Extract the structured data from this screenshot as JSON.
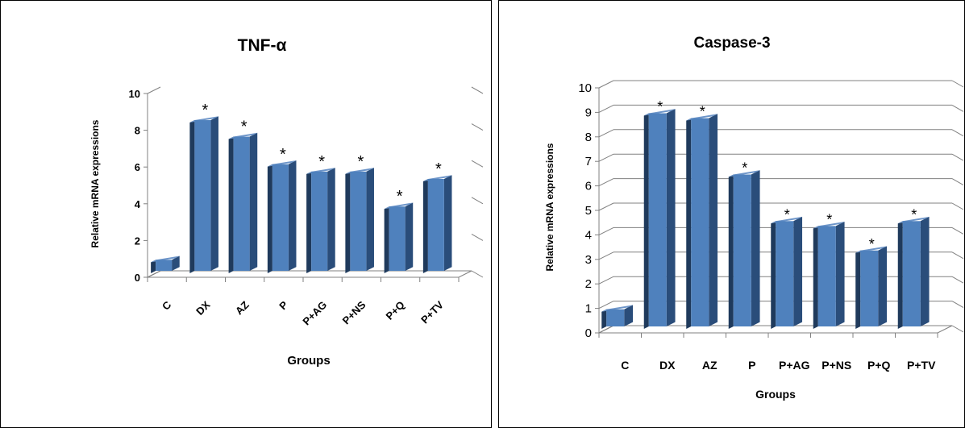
{
  "chart_data": [
    {
      "type": "bar",
      "title": "TNF-α",
      "xlabel": "Groups",
      "ylabel": "Relative mRNA expressions",
      "categories": [
        "C",
        "DX",
        "AZ",
        "P",
        "P+AG",
        "P+NS",
        "P+Q",
        "P+TV"
      ],
      "values": [
        0.6,
        8.2,
        7.3,
        5.8,
        5.4,
        5.4,
        3.5,
        5.0
      ],
      "annotations": [
        "",
        "*",
        "*",
        "*",
        "*",
        "*",
        "*",
        "*"
      ],
      "ylim": [
        0,
        10
      ],
      "yticks": [
        "0",
        "2",
        "4",
        "6",
        "8",
        "10"
      ],
      "tick_rotation": "rotated",
      "grid": false,
      "bar_color": "#4f81bd"
    },
    {
      "type": "bar",
      "title": "Caspase-3",
      "xlabel": "Groups",
      "ylabel": "Relative mRNA expressions",
      "categories": [
        "C",
        "DX",
        "AZ",
        "P",
        "P+AG",
        "P+NS",
        "P+Q",
        "P+TV"
      ],
      "values": [
        0.7,
        8.7,
        8.5,
        6.2,
        4.3,
        4.1,
        3.1,
        4.3
      ],
      "annotations": [
        "",
        "*",
        "*",
        "*",
        "*",
        "*",
        "*",
        "*"
      ],
      "ylim": [
        0,
        10
      ],
      "yticks": [
        "0",
        "1",
        "2",
        "3",
        "4",
        "5",
        "6",
        "7",
        "8",
        "9",
        "10"
      ],
      "tick_rotation": "horizontal",
      "grid": true,
      "bar_color": "#4f81bd"
    }
  ]
}
